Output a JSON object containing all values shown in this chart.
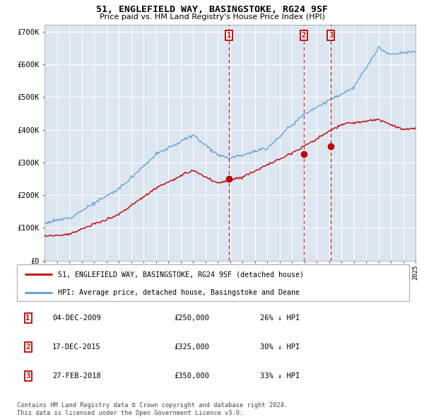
{
  "title": "51, ENGLEFIELD WAY, BASINGSTOKE, RG24 9SF",
  "subtitle": "Price paid vs. HM Land Registry's House Price Index (HPI)",
  "plot_bg_color": "#dce6f1",
  "ylim": [
    0,
    720000
  ],
  "yticks": [
    0,
    100000,
    200000,
    300000,
    400000,
    500000,
    600000,
    700000
  ],
  "ytick_labels": [
    "£0",
    "£100K",
    "£200K",
    "£300K",
    "£400K",
    "£500K",
    "£600K",
    "£700K"
  ],
  "hpi_color": "#5b9bd5",
  "price_color": "#c00000",
  "transactions": [
    {
      "label": "1",
      "date": "04-DEC-2009",
      "price": 250000,
      "price_str": "£250,000",
      "pct": "26%"
    },
    {
      "label": "2",
      "date": "17-DEC-2015",
      "price": 325000,
      "price_str": "£325,000",
      "pct": "30%"
    },
    {
      "label": "3",
      "date": "27-FEB-2018",
      "price": 350000,
      "price_str": "£350,000",
      "pct": "33%"
    }
  ],
  "trans_years": [
    2009.92,
    2015.96,
    2018.17
  ],
  "legend_label_red": "51, ENGLEFIELD WAY, BASINGSTOKE, RG24 9SF (detached house)",
  "legend_label_blue": "HPI: Average price, detached house, Basingstoke and Deane",
  "footer": "Contains HM Land Registry data © Crown copyright and database right 2024.\nThis data is licensed under the Open Government Licence v3.0.",
  "x_start_year": 1995,
  "x_end_year": 2025
}
